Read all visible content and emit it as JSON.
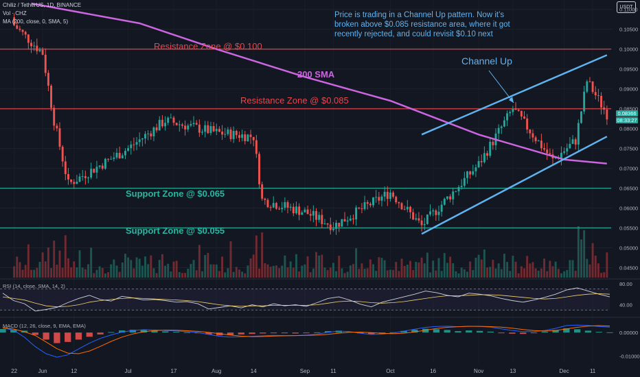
{
  "header": {
    "symbol_line": "Chiliz / TetherUS, 1D, BINANCE",
    "vol_line": "Vol · CHZ",
    "ma_line": "MA (200, close, 0, SMA, 5)",
    "currency_button": "USDT"
  },
  "annotations": {
    "note": "Price is trading in a Channel Up pattern. Now it’s broken above $0.085 resistance area, where it got recently rejected, and could revisit $0.10 next",
    "resistance_100": "Resistance Zone @ $0.100",
    "resistance_085": "Resistance Zone @ $0.085",
    "support_065": "Support Zone @ $0.065",
    "support_055": "Support Zone @ $0.055",
    "sma_label": "200 SMA",
    "channel_label": "Channel Up"
  },
  "price_tag": {
    "price": "0.08366",
    "countdown": "08:33:27"
  },
  "chart_data": [
    {
      "type": "candlestick",
      "panel": "price",
      "x_ticks": [
        "22",
        "Jun",
        "12",
        "Jul",
        "17",
        "Aug",
        "14",
        "Sep",
        "11",
        "Oct",
        "16",
        "Nov",
        "13",
        "Dec",
        "11"
      ],
      "y_ticks": [
        "0.11000",
        "0.10500",
        "0.10000",
        "0.09500",
        "0.09000",
        "0.08500",
        "0.08000",
        "0.07500",
        "0.07000",
        "0.06500",
        "0.06000",
        "0.05500",
        "0.05000",
        "0.04500"
      ],
      "ylim": [
        0.0425,
        0.1115
      ],
      "ohlc_anchor_closes": [
        {
          "date": "May 22",
          "close": 0.106
        },
        {
          "date": "Jun 1",
          "close": 0.099
        },
        {
          "date": "Jun 5",
          "close": 0.082
        },
        {
          "date": "Jun 10",
          "close": 0.066
        },
        {
          "date": "Jul 1",
          "close": 0.075
        },
        {
          "date": "Jul 14",
          "close": 0.082
        },
        {
          "date": "Aug 1",
          "close": 0.079
        },
        {
          "date": "Aug 14",
          "close": 0.078
        },
        {
          "date": "Aug 17",
          "close": 0.062
        },
        {
          "date": "Sep 1",
          "close": 0.059
        },
        {
          "date": "Sep 11",
          "close": 0.0555
        },
        {
          "date": "Oct 1",
          "close": 0.064
        },
        {
          "date": "Oct 12",
          "close": 0.0555
        },
        {
          "date": "Nov 1",
          "close": 0.071
        },
        {
          "date": "Nov 13",
          "close": 0.085
        },
        {
          "date": "Nov 27",
          "close": 0.072
        },
        {
          "date": "Dec 5",
          "close": 0.077
        },
        {
          "date": "Dec 9",
          "close": 0.092
        },
        {
          "date": "Dec 16",
          "close": 0.0837
        }
      ],
      "sma_200": [
        {
          "date": "May 28",
          "value": 0.1115
        },
        {
          "date": "Jul 5",
          "value": 0.1065
        },
        {
          "date": "Aug 1",
          "value": 0.1
        },
        {
          "date": "Sep 1",
          "value": 0.093
        },
        {
          "date": "Oct 1",
          "value": 0.087
        },
        {
          "date": "Nov 1",
          "value": 0.0785
        },
        {
          "date": "Dec 1",
          "value": 0.0722
        },
        {
          "date": "Dec 16",
          "value": 0.0712
        }
      ],
      "horizontal_levels": [
        {
          "name": "Resistance Zone @ $0.100",
          "value": 0.1,
          "color": "#e8474d"
        },
        {
          "name": "Resistance Zone @ $0.085",
          "value": 0.085,
          "color": "#e8474d"
        },
        {
          "name": "Support Zone @ $0.065",
          "value": 0.065,
          "color": "#26b8a1"
        },
        {
          "name": "Support Zone @ $0.055",
          "value": 0.055,
          "color": "#26b8a1"
        }
      ],
      "channel_lines": [
        {
          "from": {
            "date": "Oct 12",
            "value": 0.0785
          },
          "to": {
            "date": "Dec 16",
            "value": 0.0985
          }
        },
        {
          "from": {
            "date": "Oct 12",
            "value": 0.0535
          },
          "to": {
            "date": "Dec 16",
            "value": 0.078
          }
        }
      ],
      "colors": {
        "up": "#26a69a",
        "down": "#ef5350",
        "sma": "#cc66e0",
        "channel": "#5fb4f0",
        "background": "#131722"
      }
    },
    {
      "type": "line",
      "panel": "RSI",
      "title": "RSI (14, close, SMA, 14, 2)",
      "y_ticks": [
        "80.00",
        "40.00"
      ],
      "ylim": [
        20,
        85
      ],
      "band": [
        70,
        30
      ],
      "series": [
        {
          "values": [
            62,
            48,
            42,
            28,
            31,
            35,
            44,
            52,
            58,
            50,
            47,
            56,
            53,
            49,
            50,
            48,
            45,
            46,
            42,
            32,
            35,
            38,
            34,
            40,
            36,
            42,
            38,
            40,
            37,
            44,
            52,
            55,
            49,
            41,
            36,
            45,
            50,
            55,
            60,
            66,
            63,
            58,
            55,
            62,
            60,
            57,
            52,
            48,
            45,
            49,
            54,
            60,
            68,
            72,
            66,
            60,
            55
          ]
        },
        {
          "values": [
            55,
            52,
            49,
            43,
            38,
            36,
            37,
            40,
            45,
            48,
            50,
            52,
            53,
            52,
            51,
            50,
            49,
            48,
            46,
            43,
            40,
            38,
            37,
            38,
            38,
            39,
            39,
            39,
            39,
            40,
            43,
            46,
            47,
            46,
            44,
            43,
            44,
            46,
            49,
            52,
            55,
            57,
            57,
            58,
            59,
            59,
            58,
            56,
            54,
            52,
            51,
            52,
            55,
            58,
            60,
            61,
            60
          ]
        }
      ],
      "colors": {
        "rsi": "#d1d4dc",
        "ma": "#f7d774",
        "band": "#7e57c2"
      }
    },
    {
      "type": "bar",
      "panel": "MACD",
      "title": "MACD (12, 26, close, 9, EMA, EMA)",
      "y_ticks": [
        "0.00000",
        "-0.01000"
      ],
      "ylim": [
        -0.0125,
        0.005
      ],
      "histogram": [
        0.0015,
        0.0012,
        0.0008,
        -0.001,
        -0.003,
        -0.0045,
        -0.004,
        -0.003,
        -0.0018,
        -0.0008,
        0.0002,
        0.0009,
        0.0012,
        0.0011,
        0.0008,
        0.0005,
        0.0003,
        0.0001,
        -0.0002,
        -0.0008,
        -0.0012,
        -0.0011,
        -0.0008,
        -0.0006,
        -0.0004,
        -0.0002,
        -0.0003,
        -0.0004,
        -0.0002,
        0.0001,
        0.0006,
        0.0008,
        0.0003,
        -0.0004,
        -0.0008,
        -0.0005,
        0.0001,
        0.0007,
        0.0012,
        0.0016,
        0.0014,
        0.0011,
        0.0006,
        0.0009,
        0.0007,
        0.0004,
        -0.0002,
        -0.0005,
        -0.0006,
        -0.0002,
        0.0004,
        0.0011,
        0.0018,
        0.0014,
        0.0008,
        0.0003,
        0.0001
      ],
      "macd_line": [
        0.002,
        0.001,
        -0.002,
        -0.006,
        -0.009,
        -0.0105,
        -0.0095,
        -0.007,
        -0.0045,
        -0.0025,
        -0.001,
        0.0002,
        0.0009,
        0.0012,
        0.0011,
        0.0009,
        0.0007,
        0.0004,
        0.0,
        -0.0008,
        -0.0016,
        -0.0019,
        -0.0018,
        -0.0016,
        -0.0014,
        -0.0012,
        -0.0013,
        -0.0013,
        -0.0011,
        -0.0007,
        0.0001,
        0.0006,
        0.0004,
        -0.0003,
        -0.0008,
        -0.0007,
        -0.0002,
        0.0006,
        0.0014,
        0.0022,
        0.0026,
        0.0027,
        0.0025,
        0.0027,
        0.0026,
        0.0023,
        0.0016,
        0.0009,
        0.0004,
        0.0004,
        0.0009,
        0.0018,
        0.003,
        0.0032,
        0.003,
        0.0026,
        0.0023
      ],
      "colors": {
        "macd": "#2962ff",
        "signal": "#ff6d00",
        "pos": "#26a69a",
        "neg": "#ef5350"
      }
    }
  ]
}
